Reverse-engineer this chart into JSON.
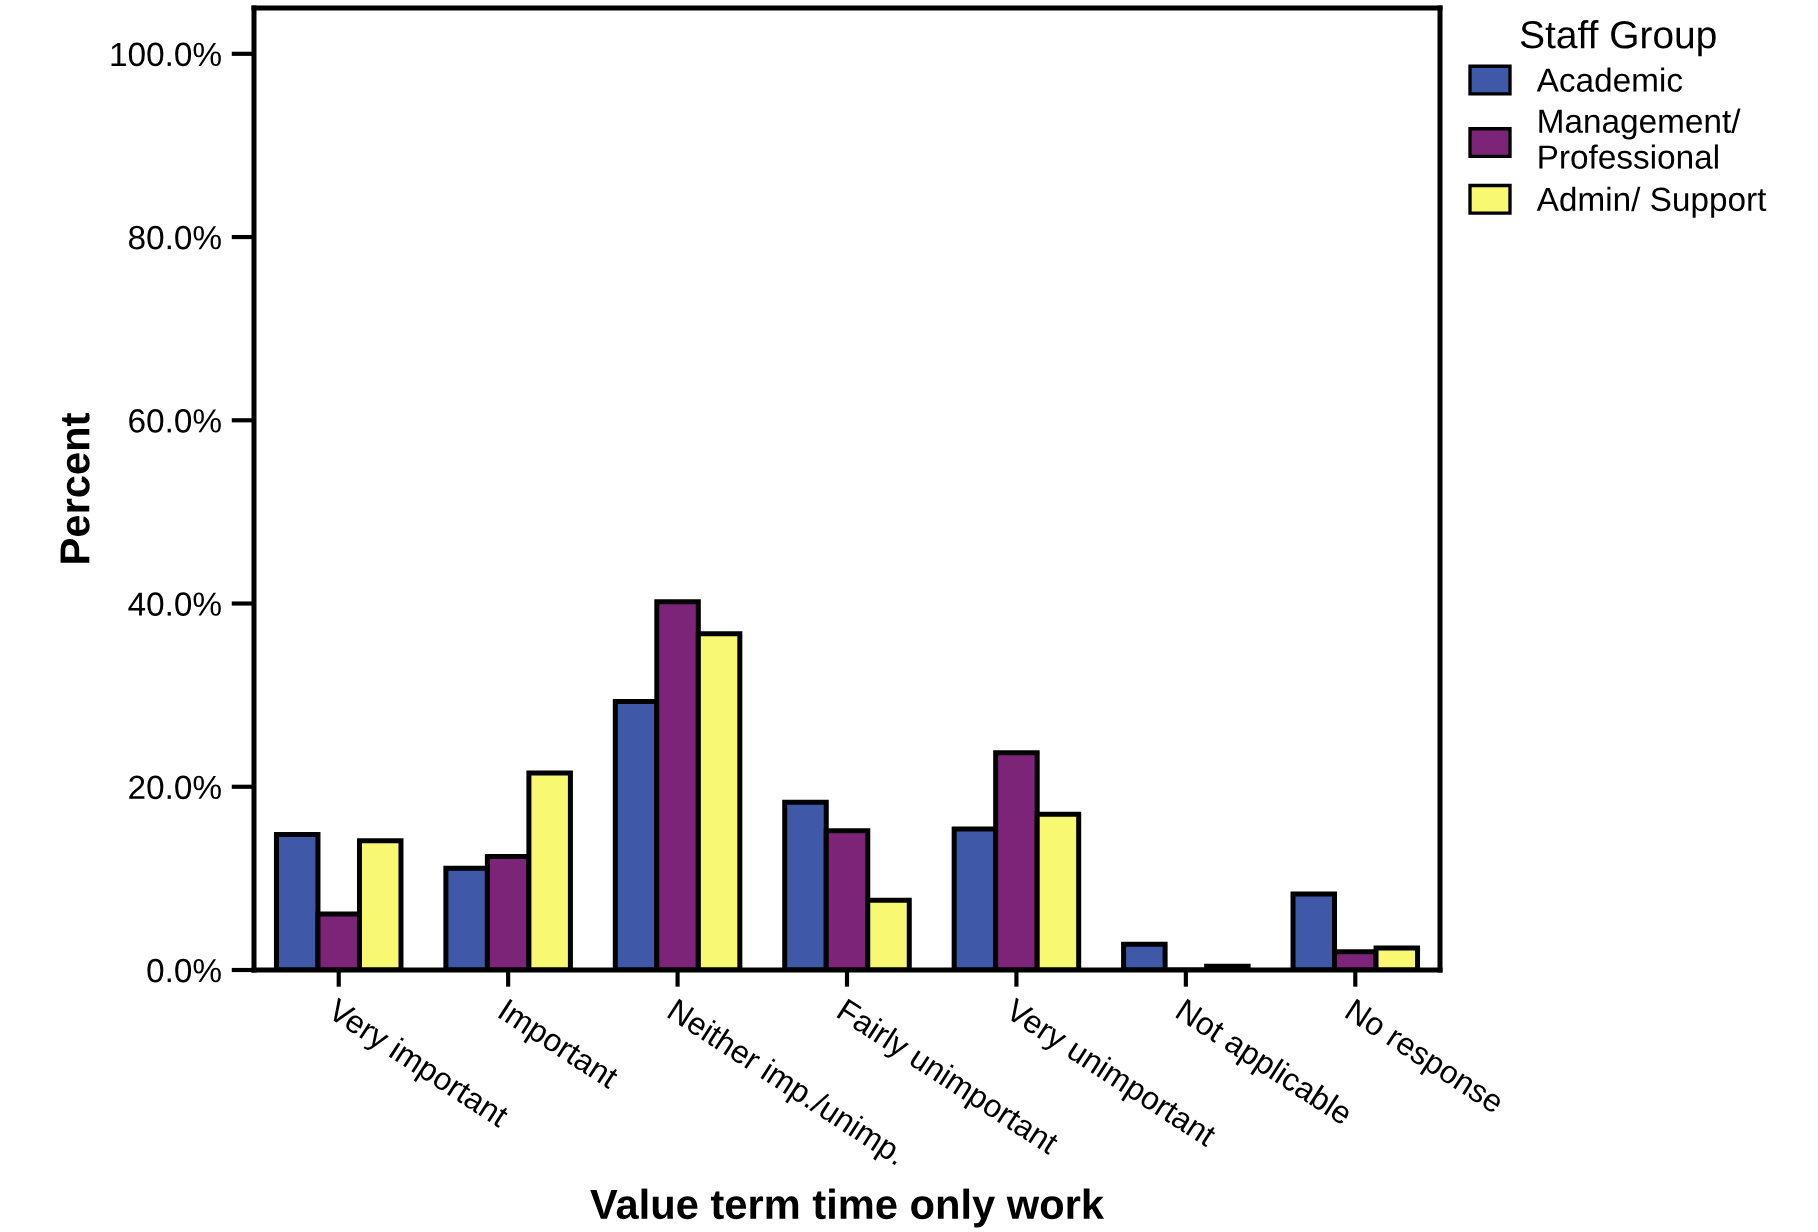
{
  "chart_data": {
    "type": "bar",
    "xlabel": "Value term time only work",
    "ylabel": "Percent",
    "legend_title": "Staff Group",
    "legend": "top right",
    "categories": [
      "Very important",
      "Important",
      "Neither imp./unimp.",
      "Fairly unimportant",
      "Very unimportant",
      "Not applicable",
      "No response"
    ],
    "series": [
      {
        "name": "Academic",
        "color": "#3f58a8",
        "values": [
          14.8,
          11.1,
          29.3,
          18.3,
          15.4,
          2.8,
          8.3
        ]
      },
      {
        "name": "Management/\nProfessional",
        "color": "#7b2478",
        "values": [
          6.1,
          12.4,
          40.2,
          15.2,
          23.7,
          0,
          2.0
        ]
      },
      {
        "name": "Admin/ Support",
        "color": "#f9f871",
        "values": [
          14.1,
          21.5,
          36.7,
          7.6,
          17.0,
          0.4,
          2.4
        ]
      }
    ],
    "ylim": [
      0,
      105
    ],
    "yticks": [
      {
        "value": 0,
        "label": "0.0%"
      },
      {
        "value": 20,
        "label": "20.0%"
      },
      {
        "value": 40,
        "label": "40.0%"
      },
      {
        "value": 60,
        "label": "60.0%"
      },
      {
        "value": 80,
        "label": "80.0%"
      },
      {
        "value": 100,
        "label": "100.0%"
      }
    ],
    "grid": false
  }
}
